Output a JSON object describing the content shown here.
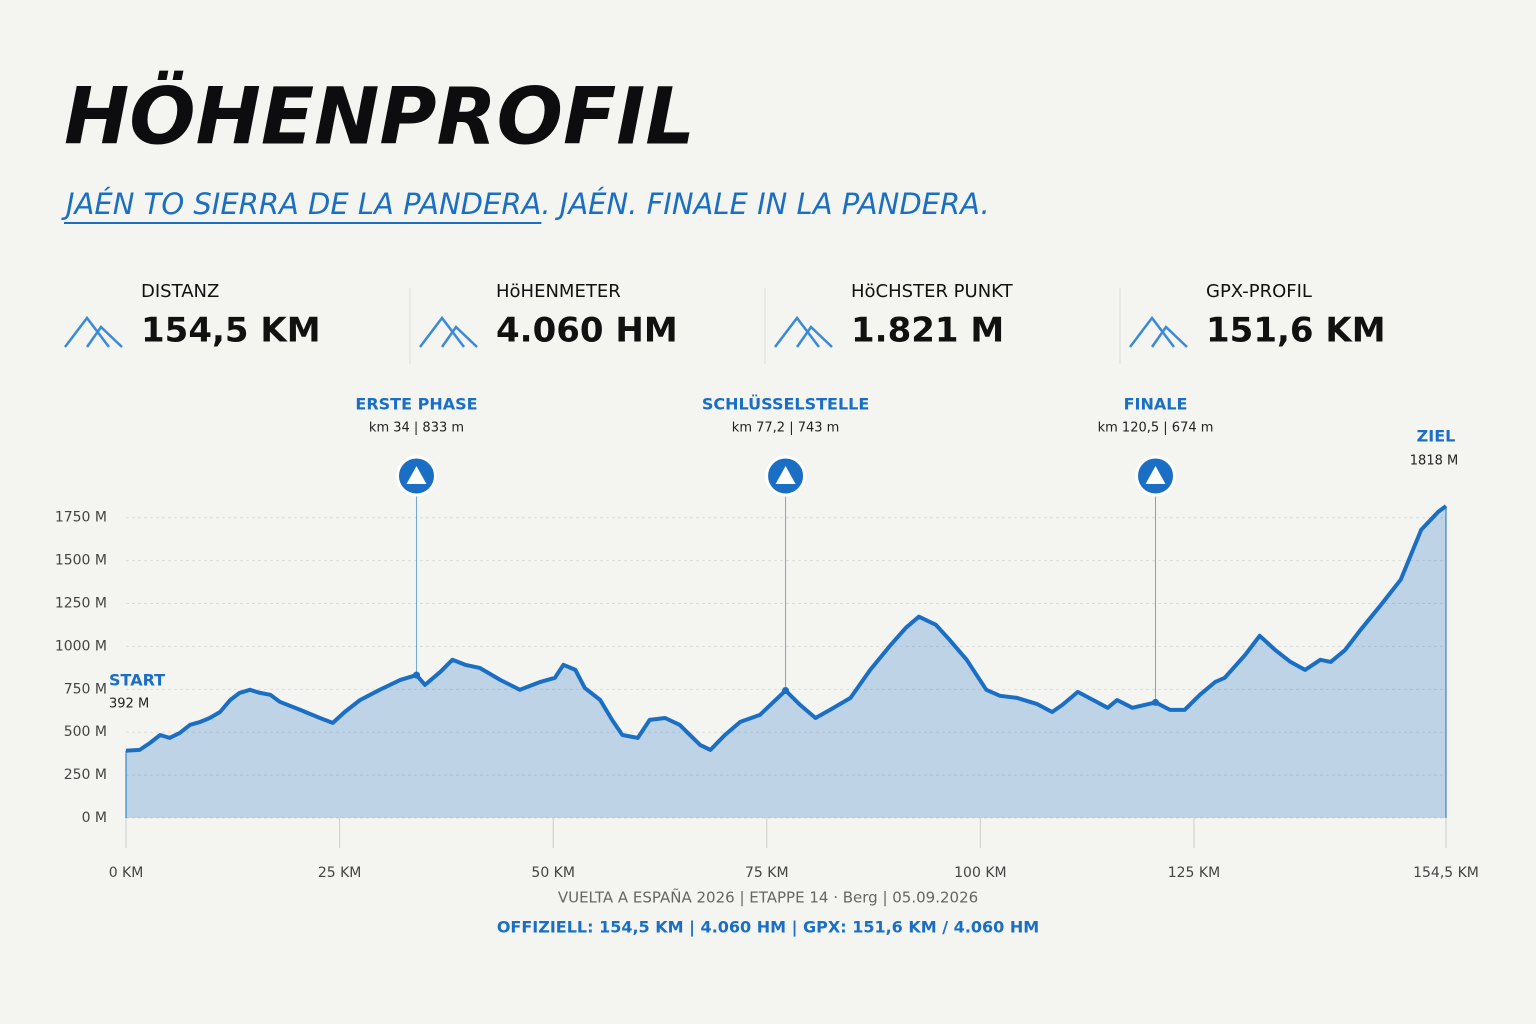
{
  "header": {
    "title": "HÖHENPROFIL",
    "subtitle_link": "JAÉN TO SIERRA DE LA PANDERA",
    "subtitle_rest": ". JAÉN. FINALE IN LA PANDERA."
  },
  "stats": [
    {
      "label": "DISTANZ",
      "value": "154,5 KM"
    },
    {
      "label": "HöHENMETER",
      "value": "4.060 HM"
    },
    {
      "label": "HöCHSTER PUNKT",
      "value": "1.821 M"
    },
    {
      "label": "GPX-PROFIL",
      "value": "151,6 KM"
    }
  ],
  "chart_data": {
    "type": "area",
    "color": "#1a6fc4",
    "x": [
      0,
      1.6,
      2.8,
      4,
      5.1,
      6.3,
      7.5,
      8.7,
      9.8,
      11,
      12.2,
      13.3,
      14.5,
      15.7,
      16.9,
      18,
      20.4,
      22.7,
      24.2,
      25.6,
      27.4,
      29.7,
      32.1,
      34,
      35,
      36.8,
      38.2,
      39.7,
      41.4,
      43.8,
      46.1,
      48.5,
      50.2,
      51.2,
      52.6,
      53.7,
      55.5,
      56.9,
      58.1,
      59.9,
      61.3,
      63.1,
      64.8,
      67.2,
      68.4,
      70.1,
      71.9,
      74.2,
      77.2,
      78.9,
      80.7,
      82.4,
      84.8,
      87.1,
      89.5,
      91.3,
      92.8,
      94.8,
      96.4,
      98.4,
      100.7,
      102.3,
      104.3,
      106.6,
      108.4,
      109.6,
      111.4,
      113.2,
      114.9,
      116,
      117.8,
      120.5,
      122.2,
      123.9,
      125.7,
      127.5,
      128.6,
      131,
      132.7,
      134.5,
      136.3,
      138,
      139.8,
      141,
      142.7,
      144.5,
      146.9,
      149.2,
      151.6,
      153.6,
      154.5
    ],
    "values": [
      392,
      397,
      437,
      484,
      467,
      496,
      543,
      560,
      583,
      618,
      688,
      729,
      747,
      729,
      718,
      677,
      630,
      583,
      554,
      618,
      688,
      747,
      805,
      833,
      776,
      852,
      922,
      893,
      875,
      805,
      747,
      793,
      817,
      893,
      863,
      758,
      688,
      572,
      484,
      467,
      572,
      583,
      543,
      426,
      397,
      484,
      560,
      601,
      743,
      659,
      583,
      630,
      700,
      863,
      1009,
      1109,
      1173,
      1126,
      1038,
      922,
      747,
      712,
      700,
      665,
      618,
      659,
      735,
      688,
      642,
      688,
      642,
      674,
      630,
      630,
      718,
      793,
      817,
      951,
      1062,
      980,
      910,
      863,
      922,
      910,
      980,
      1097,
      1243,
      1389,
      1680,
      1785,
      1818
    ],
    "xlim": [
      0,
      154.5
    ],
    "ylim": [
      0,
      1900
    ],
    "xticks": [
      {
        "value": 0,
        "label": "0 KM"
      },
      {
        "value": 25,
        "label": "25 KM"
      },
      {
        "value": 50,
        "label": "50 KM"
      },
      {
        "value": 75,
        "label": "75 KM"
      },
      {
        "value": 100,
        "label": "100 KM"
      },
      {
        "value": 125,
        "label": "125 KM"
      },
      {
        "value": 154.5,
        "label": "154,5 KM"
      }
    ],
    "yticks": [
      {
        "value": 0,
        "label": "0 M"
      },
      {
        "value": 250,
        "label": "250 M"
      },
      {
        "value": 500,
        "label": "500 M"
      },
      {
        "value": 750,
        "label": "750 M"
      },
      {
        "value": 1000,
        "label": "1000 M"
      },
      {
        "value": 1250,
        "label": "1250 M"
      },
      {
        "value": 1500,
        "label": "1500 M"
      },
      {
        "value": 1750,
        "label": "1750 M"
      }
    ],
    "grid": true,
    "start": {
      "label": "START",
      "text": "392 M"
    },
    "finish": {
      "label": "ZIEL",
      "text": "1818 M"
    },
    "markers": [
      {
        "label": "ERSTE PHASE",
        "text": "km 34 | 833 m",
        "x": 34,
        "y": 833
      },
      {
        "label": "SCHLÜSSELSTELLE",
        "text": "km 77,2 | 743 m",
        "x": 77.2,
        "y": 743
      },
      {
        "label": "FINALE",
        "text": "km 120,5 | 674 m",
        "x": 120.5,
        "y": 674
      }
    ]
  },
  "footer": {
    "line1": "VUELTA A ESPAÑA 2026 | ETAPPE 14 · Berg | 05.09.2026",
    "line2": "OFFIZIELL: 154,5 KM | 4.060 HM | GPX: 151,6 KM / 4.060 HM"
  }
}
